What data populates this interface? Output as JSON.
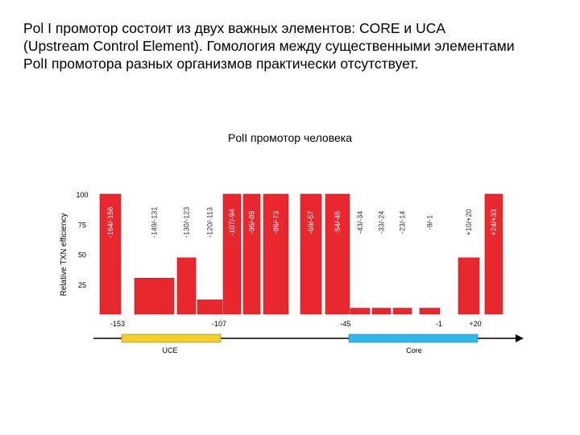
{
  "intro_lines": [
    "Pol I промотор состоит из двух важных элементов: CORE и UCA",
    "(Upstream Control Element). Гомология между существенными элементами",
    "PolI промотора разных организмов практически отсутствует."
  ],
  "chart_data": {
    "type": "bar",
    "title": "PolI промотор человека",
    "ylabel": "Relative TXN efficiency",
    "ylim": [
      0,
      100
    ],
    "yticks": [
      25,
      50,
      75,
      100
    ],
    "colors": {
      "bar": "#e8282e",
      "bar_edge": "#b11a1f",
      "uce": "#f2cf2a",
      "core": "#2fb9ea"
    },
    "categories": [
      "-164/-156",
      "-149/-131",
      "-130/-123",
      "-120/-113",
      "-107/-94",
      "-95/-89",
      "-86/-73",
      "-69/-57",
      "-54/-45",
      "-43/-34",
      "-33/-24",
      "-23/-14",
      "-9/-1",
      "+10/+20",
      "+24/+33"
    ],
    "values": [
      100,
      30,
      47,
      12,
      100,
      100,
      100,
      100,
      100,
      5,
      5,
      5,
      5,
      47,
      100
    ],
    "position_labels": [
      "-153",
      "-107",
      "-45",
      "-1",
      "+20"
    ],
    "elements": [
      "UCE",
      "Core"
    ]
  }
}
